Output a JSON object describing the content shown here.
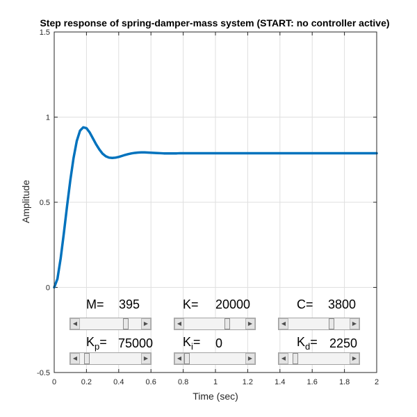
{
  "chart_data": {
    "type": "line",
    "title": "Step response of spring-damper-mass system (START: no controller active)",
    "xlabel": "Time (sec)",
    "ylabel": "Amplitude",
    "xlim": [
      0,
      2
    ],
    "ylim": [
      -0.5,
      1.5
    ],
    "xticks": [
      0,
      0.2,
      0.4,
      0.6,
      0.8,
      1,
      1.2,
      1.4,
      1.6,
      1.8,
      2
    ],
    "xtick_labels": [
      "0",
      "0.2",
      "0.4",
      "0.6",
      "0.8",
      "1",
      "1.2",
      "1.4",
      "1.6",
      "1.8",
      "2"
    ],
    "yticks": [
      -0.5,
      0,
      0.5,
      1,
      1.5
    ],
    "ytick_labels": [
      "-0.5",
      "0",
      "0.5",
      "1",
      "1.5"
    ],
    "grid": true,
    "series": [
      {
        "color": "#0072bd",
        "x": [
          0,
          0.02,
          0.04,
          0.06,
          0.08,
          0.1,
          0.12,
          0.14,
          0.16,
          0.18,
          0.2,
          0.22,
          0.24,
          0.26,
          0.28,
          0.3,
          0.32,
          0.34,
          0.36,
          0.38,
          0.4,
          0.42,
          0.44,
          0.46,
          0.48,
          0.5,
          0.52,
          0.54,
          0.56,
          0.58,
          0.6,
          0.62,
          0.64,
          0.66,
          0.68,
          0.7,
          0.72,
          0.74,
          0.76,
          0.78,
          0.8,
          0.85,
          0.9,
          0.95,
          1.0,
          1.1,
          1.2,
          1.3,
          1.4,
          1.5,
          1.6,
          1.7,
          1.8,
          1.9,
          2.0
        ],
        "y": [
          0,
          0.05,
          0.17,
          0.32,
          0.48,
          0.63,
          0.76,
          0.86,
          0.92,
          0.94,
          0.935,
          0.91,
          0.875,
          0.84,
          0.81,
          0.785,
          0.77,
          0.762,
          0.76,
          0.762,
          0.766,
          0.772,
          0.778,
          0.783,
          0.787,
          0.79,
          0.792,
          0.793,
          0.793,
          0.792,
          0.791,
          0.79,
          0.789,
          0.788,
          0.787,
          0.787,
          0.787,
          0.787,
          0.787,
          0.788,
          0.788,
          0.788,
          0.788,
          0.788,
          0.788,
          0.788,
          0.788,
          0.788,
          0.788,
          0.788,
          0.788,
          0.788,
          0.788,
          0.788,
          0.788
        ]
      }
    ]
  },
  "controls": {
    "m": {
      "label": "M=",
      "value": "395",
      "level": 0.78
    },
    "k": {
      "label": "K=",
      "value": "20000",
      "level": 0.72
    },
    "c": {
      "label": "C=",
      "value": "3800",
      "level": 0.72
    },
    "kp": {
      "label": "K",
      "sub": "p",
      "eq": "=",
      "value": "75000",
      "level": 0.07
    },
    "ki": {
      "label": "K",
      "sub": "i",
      "eq": "=",
      "value": "0",
      "level": 0.0
    },
    "kd": {
      "label": "K",
      "sub": "d",
      "eq": "=",
      "value": "2250",
      "level": 0.07
    },
    "arrow_left": "◀",
    "arrow_right": "▶"
  },
  "colors": {
    "series": "#0072bd"
  }
}
